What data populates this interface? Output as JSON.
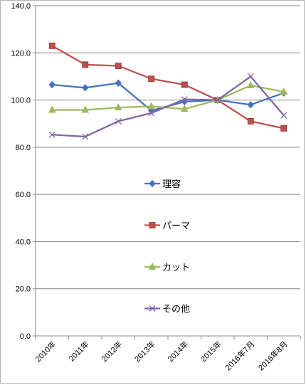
{
  "chart_data": {
    "type": "line",
    "categories": [
      "2010年",
      "2011年",
      "2012年",
      "2013年",
      "2014年",
      "2015年",
      "2016年7月",
      "2016年8月"
    ],
    "ylim": [
      0,
      140
    ],
    "yticks": [
      "0.0",
      "20.0",
      "40.0",
      "60.0",
      "80.0",
      "100.0",
      "120.0",
      "140.0"
    ],
    "grid": "horizontal",
    "legend_placement": "inside-center",
    "series": [
      {
        "name": "理容",
        "values": [
          106.5,
          105.2,
          107.2,
          95.5,
          99.3,
          100.0,
          98.0,
          103.0
        ],
        "color": "#4472C4",
        "marker": "diamond"
      },
      {
        "name": "パーマ",
        "values": [
          123.0,
          115.0,
          114.5,
          109.0,
          106.5,
          100.0,
          91.0,
          88.0
        ],
        "color": "#C0504D",
        "marker": "square"
      },
      {
        "name": "カット",
        "values": [
          95.8,
          95.8,
          96.8,
          97.3,
          96.2,
          100.0,
          106.2,
          103.5
        ],
        "color": "#9BBB59",
        "marker": "triangle"
      },
      {
        "name": "その他",
        "values": [
          85.3,
          84.5,
          91.0,
          94.5,
          100.3,
          100.0,
          110.0,
          93.5
        ],
        "color": "#8064A2",
        "marker": "x"
      }
    ]
  }
}
